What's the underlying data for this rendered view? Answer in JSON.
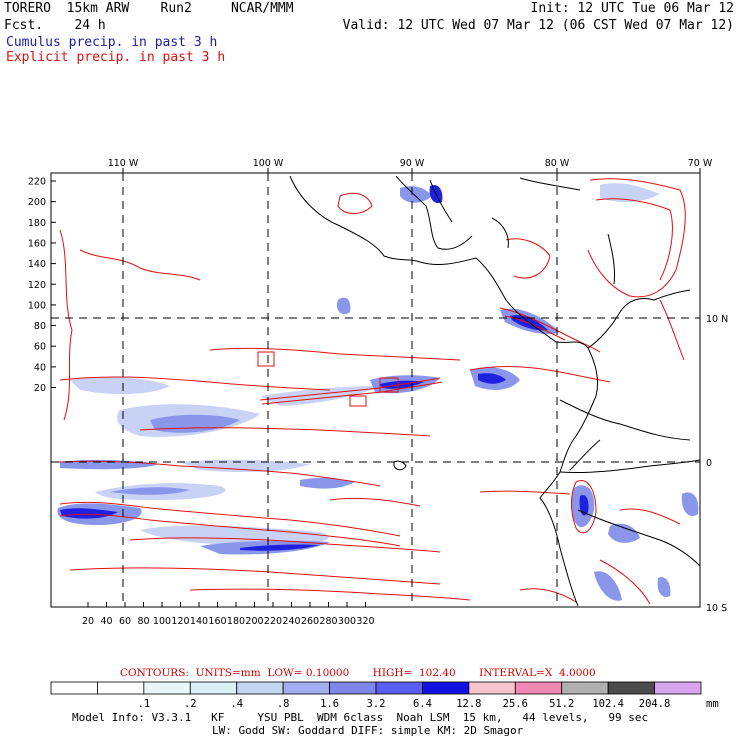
{
  "header": {
    "line1_left": "TORERO  15km ARW    Run2     NCAR/MMM",
    "line2_left": "Fcst.    24 h",
    "line1_right": "Init: 12 UTC Tue 06 Mar 12",
    "line2_right": "Valid: 12 UTC Wed 07 Mar 12 (06 CST Wed 07 Mar 12)"
  },
  "fields": {
    "cumulus_label": "Cumulus precip. in past 3 h",
    "explicit_label": "Explicit precip. in past 3 h"
  },
  "map": {
    "top_lon_labels": [
      "110 W",
      "100 W",
      "90 W",
      "80 W",
      "70 W"
    ],
    "right_lat_labels": [
      "10 N",
      "0",
      "10 S"
    ],
    "left_grid_labels": [
      "220",
      "200",
      "180",
      "160",
      "140",
      "120",
      "100",
      "80",
      "60",
      "40",
      "20"
    ],
    "bottom_grid_labels": [
      "20",
      "40",
      "60",
      "80",
      "100",
      "120",
      "140",
      "160",
      "180",
      "200",
      "220",
      "240",
      "260",
      "280",
      "300",
      "320"
    ],
    "colors": {
      "contour": "#e01010",
      "coast": "#000000",
      "grid": "#000000",
      "fill_light": "#c8d2f5",
      "fill_mid": "#8a96ea",
      "fill_dark": "#2020e0"
    }
  },
  "contours": {
    "text": "CONTOURS:  UNITS=mm  LOW= 0.10000       HIGH=  102.40       INTERVAL=X  4.0000"
  },
  "colorbar": {
    "labels": [
      ".1",
      ".2",
      ".4",
      ".8",
      "1.6",
      "3.2",
      "6.4",
      "12.8",
      "25.6",
      "51.2",
      "102.4",
      "204.8"
    ],
    "units": "mm",
    "colors": [
      "#ffffff",
      "#ffffff",
      "#eaf6fa",
      "#d8f0f6",
      "#c3d6f0",
      "#a3aef0",
      "#7d86ea",
      "#5a5ef2",
      "#1010e0",
      "#f6c4cc",
      "#f08ab4",
      "#b0b0b0",
      "#4c4c4c",
      "#d8a6f0"
    ]
  },
  "model_info": {
    "line1": "Model Info: V3.3.1   KF     YSU PBL  WDM 6class  Noah LSM  15 km,   44 levels,   99 sec",
    "line2": "LW: Godd SW: Goddard DIFF: simple KM: 2D Smagor"
  }
}
